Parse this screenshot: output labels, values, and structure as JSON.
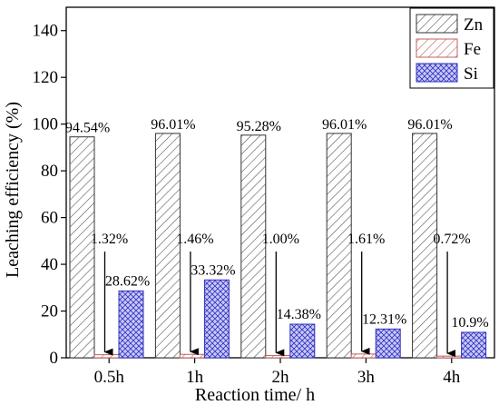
{
  "chart_data": {
    "type": "bar",
    "title": "",
    "xlabel": "Reaction time/ h",
    "ylabel": "Leaching efficiency (%)",
    "ylim": [
      0,
      150
    ],
    "yticks": [
      0,
      20,
      40,
      60,
      80,
      100,
      120,
      140
    ],
    "categories": [
      "0.5h",
      "1h",
      "2h",
      "3h",
      "4h"
    ],
    "series": [
      {
        "name": "Zn",
        "values": [
          94.54,
          96.01,
          95.28,
          96.01,
          96.01
        ],
        "labels": [
          "94.54%",
          "96.01%",
          "95.28%",
          "96.01%",
          "96.01%"
        ],
        "pattern": "diagonal-hatch",
        "fill": "#ffffff",
        "stroke": "#555555"
      },
      {
        "name": "Fe",
        "values": [
          1.32,
          1.46,
          1.0,
          1.61,
          0.72
        ],
        "labels": [
          "1.32%",
          "1.46%",
          "1.00%",
          "1.61%",
          "0.72%"
        ],
        "pattern": "diagonal-hatch",
        "fill": "#ffffff",
        "stroke": "#c06060"
      },
      {
        "name": "Si",
        "values": [
          28.62,
          33.32,
          14.38,
          12.31,
          10.9
        ],
        "labels": [
          "28.62%",
          "33.32%",
          "14.38%",
          "12.31%",
          "10.9%"
        ],
        "pattern": "crosshatch",
        "fill": "#c9c9f7",
        "stroke": "#3030c0"
      }
    ],
    "legend": {
      "position": "top-right"
    },
    "grid": false
  }
}
